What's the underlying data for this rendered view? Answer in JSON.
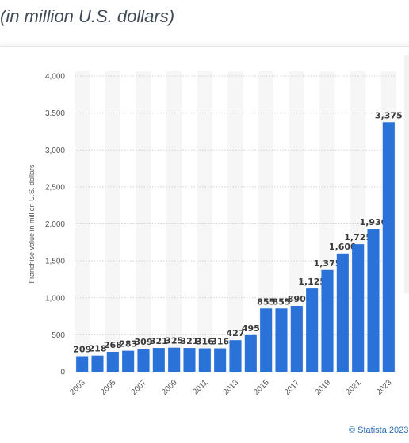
{
  "header": {
    "subtitle": "(in million U.S. dollars)"
  },
  "credit": "© Statista 2023",
  "colors": {
    "bar": "#2a72d8",
    "band": "#f6f6f6",
    "grid": "#cfcfcf"
  },
  "chart_data": {
    "type": "bar",
    "categories": [
      "2003",
      "2004",
      "2005",
      "2006",
      "2007",
      "2008",
      "2009",
      "2010",
      "2011",
      "2012",
      "2013",
      "2014",
      "2015",
      "2016",
      "2017",
      "2018",
      "2019",
      "2020",
      "2021",
      "2022",
      "2023"
    ],
    "values": [
      209,
      218,
      268,
      283,
      309,
      321,
      325,
      321,
      316,
      316,
      427,
      495,
      855,
      855,
      890,
      1125,
      1375,
      1600,
      1725,
      1930,
      3375
    ],
    "value_labels": [
      "209",
      "218",
      "268",
      "283",
      "309",
      "321",
      "325",
      "321",
      "316",
      "316",
      "427",
      "495",
      "855",
      "855",
      "890",
      "1,125",
      "1,375",
      "1,600",
      "1,725",
      "1,930",
      "3,375"
    ],
    "x_tick_labels": [
      "2003",
      "2005",
      "2007",
      "2009",
      "2011",
      "2013",
      "2015",
      "2017",
      "2019",
      "2021",
      "2023"
    ],
    "y_ticks": [
      0,
      500,
      1000,
      1500,
      2000,
      2500,
      3000,
      3500,
      4000
    ],
    "y_tick_labels": [
      "0",
      "500",
      "1,000",
      "1,500",
      "2,000",
      "2,500",
      "3,000",
      "3,500",
      "4,000"
    ],
    "ylabel": "Franchise value in million U.S. dollars",
    "ylim": [
      0,
      4000
    ],
    "grid": true
  }
}
